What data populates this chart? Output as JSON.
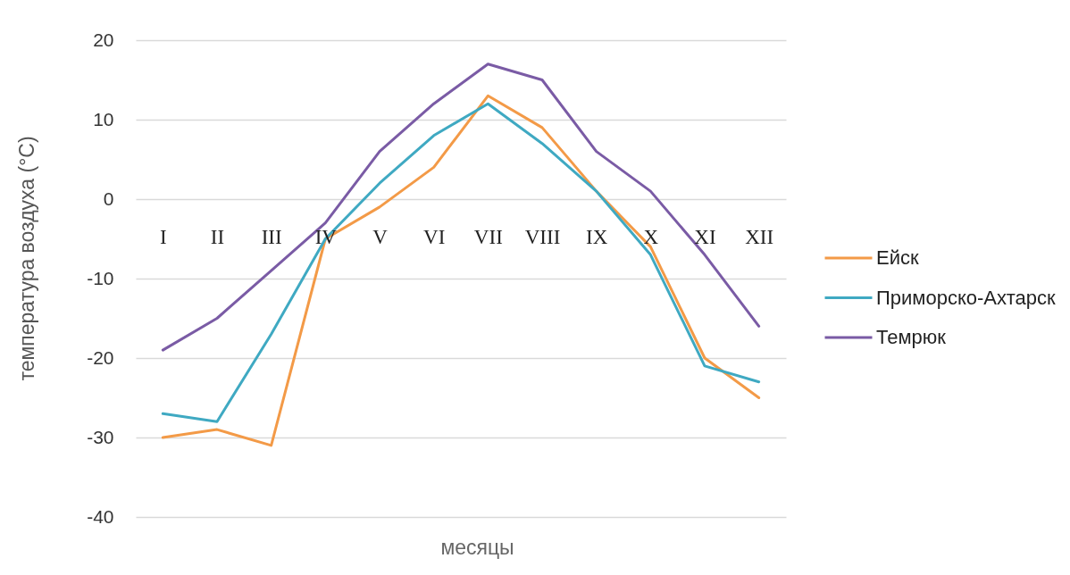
{
  "chart_data": {
    "type": "line",
    "xlabel": "месяцы",
    "ylabel": "температура воздуха (°C)",
    "categories": [
      "I",
      "II",
      "III",
      "IV",
      "V",
      "VI",
      "VII",
      "VIII",
      "IX",
      "X",
      "XI",
      "XII"
    ],
    "series": [
      {
        "name": "Ейск",
        "color": "#f39a47",
        "values": [
          -30,
          -29,
          -31,
          -5,
          -1,
          4,
          13,
          9,
          1,
          -6,
          -20,
          -25
        ]
      },
      {
        "name": "Приморско-Ахтарск",
        "color": "#3fa9c2",
        "values": [
          -27,
          -28,
          -17,
          -5,
          2,
          8,
          12,
          7,
          1,
          -7,
          -21,
          -23
        ]
      },
      {
        "name": "Темрюк",
        "color": "#7a5ba5",
        "values": [
          -19,
          -15,
          -9,
          -3,
          6,
          12,
          17,
          15,
          6,
          1,
          -7,
          -16
        ]
      }
    ],
    "ylim": [
      -40,
      20
    ],
    "yticks": [
      -40,
      -30,
      -20,
      -10,
      0,
      10,
      20
    ],
    "grid": "y",
    "legend": "right"
  }
}
